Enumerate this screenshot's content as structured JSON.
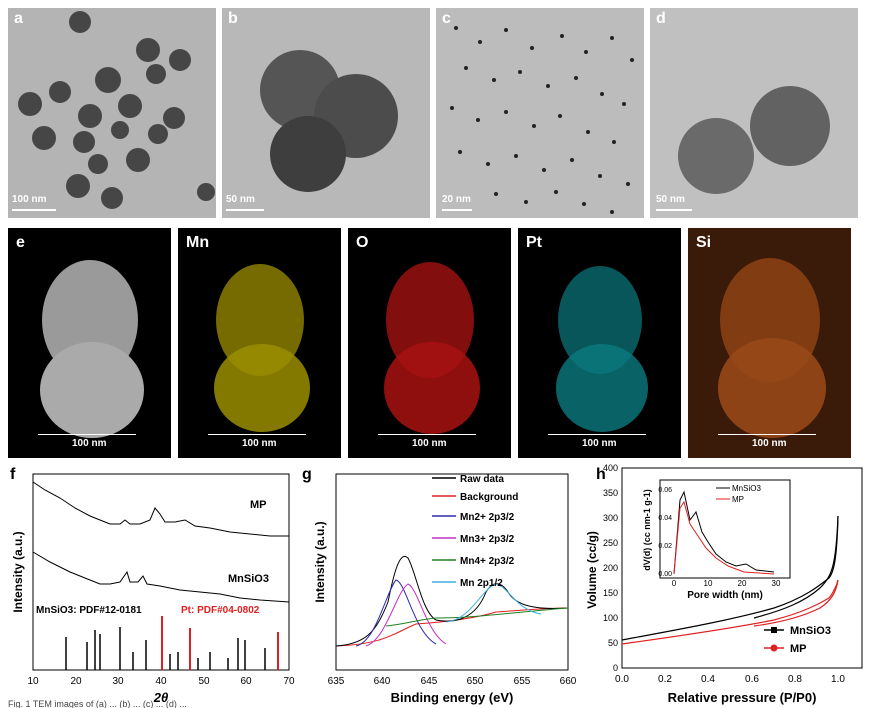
{
  "tem_panels": [
    {
      "label": "a",
      "scale": "100 nm"
    },
    {
      "label": "b",
      "scale": "50 nm"
    },
    {
      "label": "c",
      "scale": "20 nm"
    },
    {
      "label": "d",
      "scale": "50 nm"
    }
  ],
  "eds_panels": [
    {
      "label": "e",
      "scale": "100 nm",
      "color": "#d8d8d8"
    },
    {
      "label": "Mn",
      "scale": "100 nm",
      "color": "#d4c200"
    },
    {
      "label": "O",
      "scale": "100 nm",
      "color": "#e01010"
    },
    {
      "label": "Pt",
      "scale": "100 nm",
      "color": "#10c8d0"
    },
    {
      "label": "Si",
      "scale": "100 nm",
      "color": "#e07020"
    }
  ],
  "xrd": {
    "label": "f",
    "ylabel": "Intensity (a.u.)",
    "xlabel": "2θ",
    "xticks": [
      "10",
      "20",
      "30",
      "40",
      "50",
      "60",
      "70"
    ],
    "curve_labels": [
      "MP",
      "MnSiO3"
    ],
    "ref_mnsio3": "MnSiO3: PDF#12-0181",
    "ref_pt": "Pt: PDF#04-0802",
    "colors": {
      "ref_pt": "#e02020"
    }
  },
  "xps": {
    "label": "g",
    "ylabel": "Intensity (a.u.)",
    "xlabel": "Binding energy (eV)",
    "xticks": [
      "635",
      "640",
      "645",
      "650",
      "655",
      "660"
    ],
    "legend": [
      {
        "name": "Raw data",
        "color": "#000000"
      },
      {
        "name": "Background",
        "color": "#e02020"
      },
      {
        "name": "Mn2+ 2p3/2",
        "color": "#2a2ab0"
      },
      {
        "name": "Mn3+ 2p3/2",
        "color": "#c030c0"
      },
      {
        "name": "Mn4+ 2p3/2",
        "color": "#208020"
      },
      {
        "name": "Mn 2p1/2",
        "color": "#40b0e0"
      }
    ]
  },
  "bet": {
    "label": "h",
    "ylabel": "Volume (cc/g)",
    "xlabel": "Relative pressure (P/P0)",
    "xticks": [
      "0.0",
      "0.2",
      "0.4",
      "0.6",
      "0.8",
      "1.0"
    ],
    "yticks": [
      "0",
      "50",
      "100",
      "150",
      "200",
      "250",
      "300",
      "350",
      "400"
    ],
    "legend": [
      {
        "name": "MnSiO3",
        "color": "#000000"
      },
      {
        "name": "MP",
        "color": "#e02020"
      }
    ],
    "inset": {
      "ylabel": "dV(d) (cc nm-1 g-1)",
      "xlabel": "Pore width (nm)",
      "xticks": [
        "0",
        "10",
        "20",
        "30"
      ],
      "yticks": [
        "0.00",
        "0.02",
        "0.04",
        "0.06"
      ],
      "legend": [
        "MnSiO3",
        "MP"
      ]
    }
  },
  "caption_fragment": "Fig. 1 TEM images of (a) ... (b) ... (c) ... (d) ..."
}
